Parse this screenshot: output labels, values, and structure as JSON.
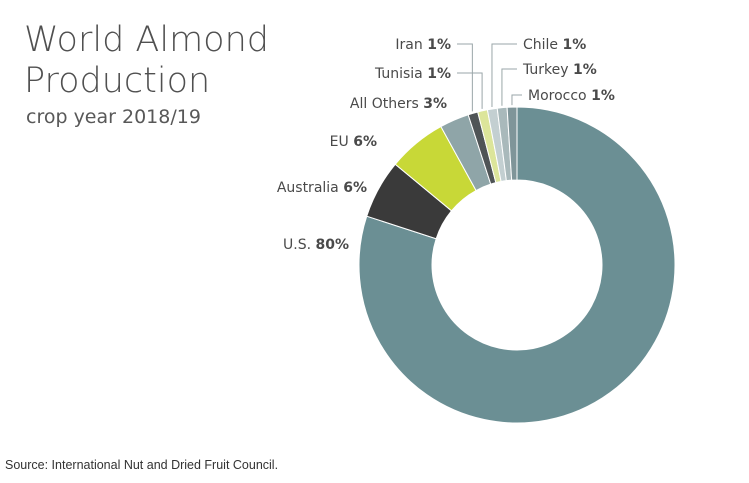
{
  "title_line1": "World Almond",
  "title_line2": "Production",
  "subtitle": "crop year 2018/19",
  "source": "Source: International Nut and Dried Fruit Council.",
  "chart_data": {
    "type": "pie",
    "donut": true,
    "title": "World Almond Production",
    "subtitle": "crop year 2018/19",
    "slices": [
      {
        "label": "U.S.",
        "value": 80,
        "value_label": "80%",
        "color": "#6b8f94"
      },
      {
        "label": "Australia",
        "value": 6,
        "value_label": "6%",
        "color": "#3a3a3a"
      },
      {
        "label": "EU",
        "value": 6,
        "value_label": "6%",
        "color": "#c8d837"
      },
      {
        "label": "All Others",
        "value": 3,
        "value_label": "3%",
        "color": "#8fa5a8"
      },
      {
        "label": "Iran",
        "value": 1,
        "value_label": "1%",
        "color": "#4f5456"
      },
      {
        "label": "Tunisia",
        "value": 1,
        "value_label": "1%",
        "color": "#dce59a"
      },
      {
        "label": "Chile",
        "value": 1,
        "value_label": "1%",
        "color": "#c3cfd1"
      },
      {
        "label": "Turkey",
        "value": 1,
        "value_label": "1%",
        "color": "#a9b9bb"
      },
      {
        "label": "Morocco",
        "value": 1,
        "value_label": "1%",
        "color": "#7f9599"
      }
    ]
  }
}
